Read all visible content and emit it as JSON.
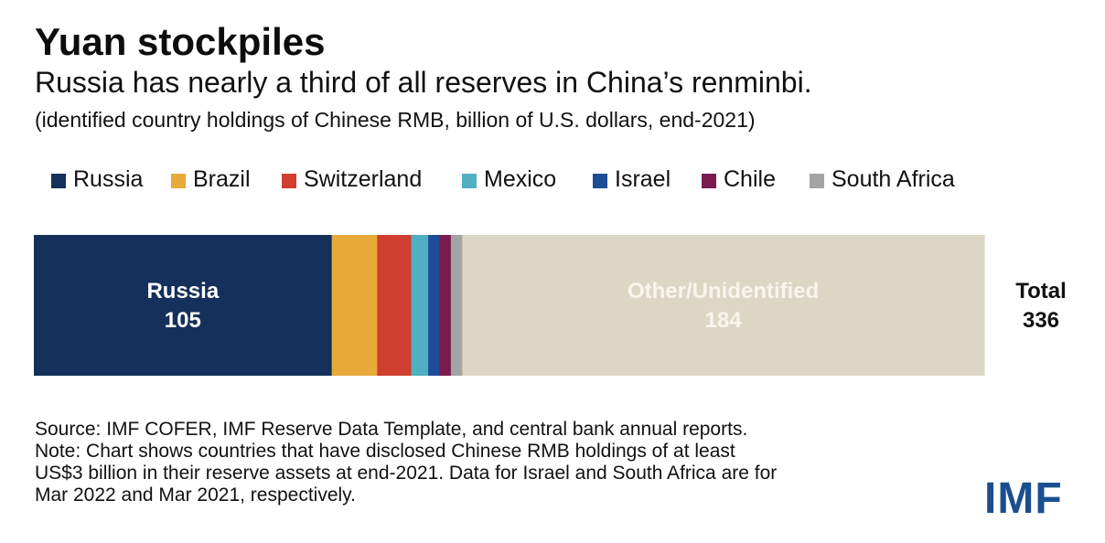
{
  "header": {
    "title": "Yuan stockpiles",
    "subtitle": "Russia has nearly a third of all reserves in China’s renminbi.",
    "units": "(identified country holdings of Chinese RMB, billion of U.S. dollars, end-2021)"
  },
  "chart_data": {
    "type": "bar",
    "orientation": "horizontal-stacked-100",
    "unit": "billion of U.S. dollars",
    "total": 336,
    "total_label": "Total",
    "series": [
      {
        "name": "Russia",
        "value": 105,
        "color": "#15305a",
        "label_shown": true
      },
      {
        "name": "Brazil",
        "value": 16,
        "color": "#e8ab3a",
        "label_shown": false
      },
      {
        "name": "Switzerland",
        "value": 12,
        "color": "#cf3e2e",
        "label_shown": false
      },
      {
        "name": "Mexico",
        "value": 6,
        "color": "#4eb0c1",
        "label_shown": false
      },
      {
        "name": "Israel",
        "value": 4,
        "color": "#1f4c97",
        "label_shown": false
      },
      {
        "name": "Chile",
        "value": 4,
        "color": "#7a1a4f",
        "label_shown": false
      },
      {
        "name": "South Africa",
        "value": 4,
        "color": "#a3a3a3",
        "label_shown": false
      },
      {
        "name": "Other/Unidentified",
        "value": 184,
        "color": "#dcd7c4",
        "label_shown": true
      }
    ],
    "legend": [
      "Russia",
      "Brazil",
      "Switzerland",
      "Mexico",
      "Israel",
      "Chile",
      "South Africa"
    ],
    "legend_position": "top-left"
  },
  "footer": {
    "source": "Source: IMF COFER, IMF Reserve Data Template, and central bank annual reports.",
    "note_lines": [
      "Note: Chart shows countries that have disclosed Chinese RMB holdings of at least",
      "US$3 billion in their reserve assets at end-2021. Data for Israel and South Africa are for",
      "Mar 2022 and Mar 2021, respectively."
    ],
    "logo": "IMF"
  }
}
